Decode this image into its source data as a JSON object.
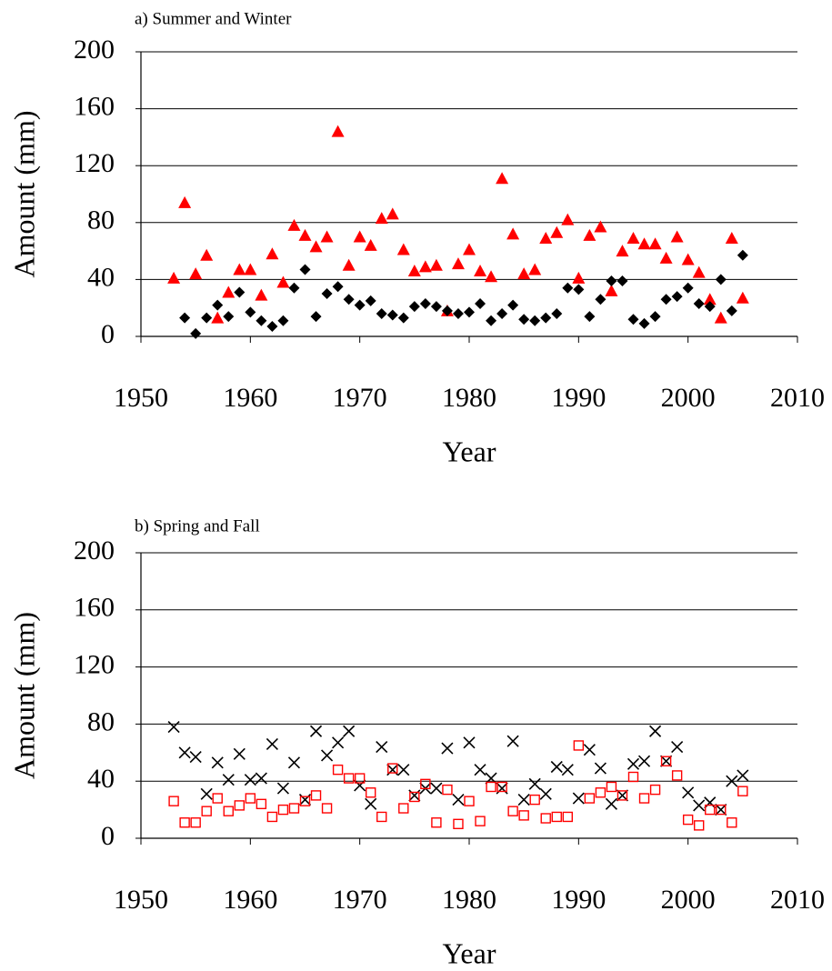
{
  "chart_data": [
    {
      "type": "scatter",
      "title": "a) Summer and Winter",
      "xlabel": "Year",
      "ylabel": "Amount (mm)",
      "x": [
        1953,
        1954,
        1955,
        1956,
        1957,
        1958,
        1959,
        1960,
        1961,
        1962,
        1963,
        1964,
        1965,
        1966,
        1967,
        1968,
        1969,
        1970,
        1971,
        1972,
        1973,
        1974,
        1975,
        1976,
        1977,
        1978,
        1979,
        1980,
        1981,
        1982,
        1983,
        1984,
        1985,
        1986,
        1987,
        1988,
        1989,
        1990,
        1991,
        1992,
        1993,
        1994,
        1995,
        1996,
        1997,
        1998,
        1999,
        2000,
        2001,
        2002,
        2003,
        2004,
        2005
      ],
      "series": [
        {
          "color": "#ff0000",
          "marker": "triangle",
          "values": [
            41,
            94,
            44,
            57,
            13,
            31,
            47,
            47,
            29,
            58,
            38,
            78,
            71,
            63,
            70,
            144,
            50,
            70,
            64,
            83,
            86,
            61,
            46,
            49,
            50,
            18,
            51,
            61,
            46,
            42,
            111,
            72,
            44,
            47,
            69,
            73,
            82,
            41,
            71,
            77,
            32,
            60,
            69,
            65,
            65,
            55,
            70,
            54,
            45,
            26,
            13,
            69,
            27
          ]
        },
        {
          "color": "#000000",
          "marker": "diamond",
          "values": [
            null,
            13,
            2,
            13,
            22,
            14,
            31,
            17,
            11,
            7,
            11,
            34,
            47,
            14,
            30,
            35,
            26,
            22,
            25,
            16,
            15,
            13,
            21,
            23,
            21,
            18,
            16,
            17,
            23,
            11,
            16,
            22,
            12,
            11,
            13,
            16,
            34,
            33,
            14,
            26,
            39,
            39,
            12,
            9,
            14,
            26,
            28,
            34,
            23,
            21,
            40,
            18,
            57
          ]
        }
      ],
      "xlim": [
        1950,
        2010
      ],
      "xticks": [
        1950,
        1960,
        1970,
        1980,
        1990,
        2000,
        2010
      ],
      "ylim": [
        0,
        200
      ],
      "yticks": [
        0,
        40,
        80,
        120,
        160,
        200
      ],
      "grid": true
    },
    {
      "type": "scatter",
      "title": "b) Spring and Fall",
      "xlabel": "Year",
      "ylabel": "Amount (mm)",
      "x": [
        1953,
        1954,
        1955,
        1956,
        1957,
        1958,
        1959,
        1960,
        1961,
        1962,
        1963,
        1964,
        1965,
        1966,
        1967,
        1968,
        1969,
        1970,
        1971,
        1972,
        1973,
        1974,
        1975,
        1976,
        1977,
        1978,
        1979,
        1980,
        1981,
        1982,
        1983,
        1984,
        1985,
        1986,
        1987,
        1988,
        1989,
        1990,
        1991,
        1992,
        1993,
        1994,
        1995,
        1996,
        1997,
        1998,
        1999,
        2000,
        2001,
        2002,
        2003,
        2004,
        2005
      ],
      "series": [
        {
          "color": "#000000",
          "marker": "cross",
          "values": [
            78,
            60,
            57,
            31,
            53,
            41,
            59,
            41,
            42,
            66,
            35,
            53,
            27,
            75,
            58,
            67,
            75,
            37,
            24,
            64,
            48,
            48,
            30,
            35,
            35,
            63,
            27,
            67,
            48,
            42,
            35,
            68,
            27,
            38,
            31,
            50,
            48,
            28,
            62,
            49,
            24,
            30,
            52,
            54,
            75,
            54,
            64,
            32,
            23,
            25,
            20,
            40,
            44
          ]
        },
        {
          "color": "#ff0000",
          "marker": "square",
          "values": [
            26,
            11,
            11,
            19,
            28,
            19,
            23,
            28,
            24,
            15,
            20,
            21,
            26,
            30,
            21,
            48,
            42,
            42,
            32,
            15,
            49,
            21,
            29,
            38,
            11,
            34,
            10,
            26,
            12,
            36,
            36,
            19,
            16,
            27,
            14,
            15,
            15,
            65,
            28,
            32,
            36,
            30,
            43,
            28,
            34,
            54,
            44,
            13,
            9,
            20,
            20,
            11,
            33
          ]
        }
      ],
      "xlim": [
        1950,
        2010
      ],
      "xticks": [
        1950,
        1960,
        1970,
        1980,
        1990,
        2000,
        2010
      ],
      "ylim": [
        0,
        200
      ],
      "yticks": [
        0,
        40,
        80,
        120,
        160,
        200
      ],
      "grid": true
    }
  ]
}
